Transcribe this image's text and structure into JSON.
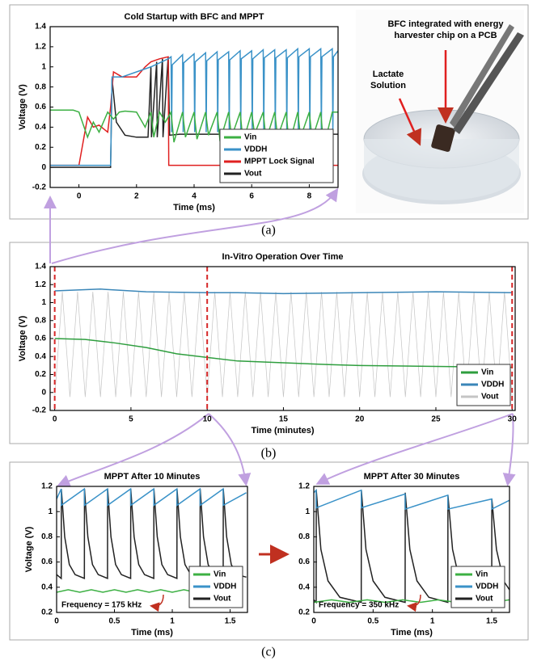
{
  "chart_data": [
    {
      "type": "line",
      "title": "Cold Startup with BFC and MPPT",
      "x_label": "Time (ms)",
      "y_label": "Voltage (V)",
      "xlim": [
        -1,
        9
      ],
      "xticks": [
        0,
        2,
        4,
        6,
        8
      ],
      "ylim": [
        -0.2,
        1.4
      ],
      "yticks": [
        -0.2,
        0,
        0.2,
        0.4,
        0.6,
        0.8,
        1,
        1.2,
        1.4
      ],
      "legend": "lower right",
      "series": [
        {
          "name": "Vin",
          "color": "#3cb043",
          "x": [
            -1,
            -0.2,
            0,
            0.3,
            0.5,
            0.7,
            1,
            1.2,
            1.4,
            1.6,
            2,
            2.3,
            2.5,
            2.6,
            2.8,
            3,
            3.2,
            3.3,
            3.6,
            3.7,
            4,
            4.1,
            4.4,
            4.5,
            4.8,
            4.9,
            5.2,
            5.3,
            5.6,
            5.7,
            6,
            6.1,
            6.4,
            6.5,
            6.8,
            6.9,
            7.2,
            7.3,
            7.6,
            7.7,
            8,
            8.1,
            8.4,
            8.5,
            8.8,
            9
          ],
          "values": [
            0.57,
            0.57,
            0.55,
            0.3,
            0.45,
            0.35,
            0.55,
            0.48,
            0.55,
            0.56,
            0.55,
            0.4,
            0.55,
            0.3,
            0.55,
            0.45,
            0.55,
            0.25,
            0.55,
            0.3,
            0.55,
            0.28,
            0.55,
            0.32,
            0.55,
            0.26,
            0.55,
            0.3,
            0.55,
            0.25,
            0.55,
            0.33,
            0.55,
            0.27,
            0.55,
            0.3,
            0.55,
            0.22,
            0.55,
            0.3,
            0.55,
            0.28,
            0.55,
            0.2,
            0.55,
            0.55
          ]
        },
        {
          "name": "VDDH",
          "color": "#3a92c8",
          "x": [
            -1,
            1.1,
            1.15,
            1.5,
            2.5,
            3.1,
            3.2,
            3.22,
            3.24,
            3.6,
            3.62,
            3.64,
            4,
            4.02,
            4.04,
            4.4,
            4.42,
            4.44,
            4.8,
            4.82,
            4.84,
            5.2,
            5.22,
            5.24,
            5.6,
            5.62,
            5.64,
            6,
            6.02,
            6.04,
            6.4,
            6.42,
            6.44,
            6.8,
            6.82,
            6.84,
            7.2,
            7.22,
            7.24,
            7.6,
            7.62,
            7.64,
            8,
            8.02,
            8.04,
            8.4,
            8.42,
            8.44,
            8.8,
            8.82,
            8.84,
            9
          ],
          "values": [
            0.02,
            0.02,
            0.9,
            0.9,
            1.0,
            1.08,
            1.1,
            0.35,
            1.02,
            1.12,
            0.35,
            1.04,
            1.13,
            0.35,
            1.05,
            1.14,
            0.35,
            1.06,
            1.15,
            0.35,
            1.07,
            1.15,
            0.35,
            1.07,
            1.16,
            0.35,
            1.08,
            1.16,
            0.35,
            1.08,
            1.17,
            0.35,
            1.09,
            1.17,
            0.35,
            1.09,
            1.17,
            0.35,
            1.09,
            1.18,
            0.35,
            1.1,
            1.18,
            0.35,
            1.1,
            1.18,
            0.35,
            1.1,
            1.18,
            0.35,
            1.1,
            1.16
          ]
        },
        {
          "name": "MPPT Lock Signal",
          "color": "#e02020",
          "x": [
            -1,
            0,
            0.3,
            0.5,
            0.7,
            1,
            1.1,
            1.2,
            1.5,
            2,
            2.3,
            2.5,
            2.8,
            3.1,
            3.12,
            9
          ],
          "values": [
            0.02,
            0.02,
            0.5,
            0.4,
            0.42,
            0.35,
            0.6,
            0.95,
            0.9,
            0.9,
            1.0,
            1.05,
            1.08,
            1.1,
            0.02,
            0.02
          ]
        },
        {
          "name": "Vout",
          "color": "#222222",
          "x": [
            -1,
            1.1,
            1.15,
            1.3,
            1.6,
            2,
            2.4,
            2.5,
            2.52,
            2.7,
            2.72,
            2.9,
            2.92,
            3.1,
            3.15,
            3.5,
            9
          ],
          "values": [
            0,
            0,
            0.88,
            0.45,
            0.32,
            0.3,
            0.3,
            1.0,
            0.3,
            1.05,
            0.3,
            1.08,
            0.3,
            1.1,
            0.32,
            0.33,
            0.33
          ]
        }
      ]
    },
    {
      "type": "line",
      "title": "In-Vitro Operation Over Time",
      "x_label": "Time (minutes)",
      "y_label": "Voltage (V)",
      "xlim": [
        -0.3,
        30.2
      ],
      "xticks": [
        0,
        5,
        10,
        15,
        20,
        25,
        30
      ],
      "ylim": [
        -0.2,
        1.4
      ],
      "yticks": [
        -0.2,
        0,
        0.2,
        0.4,
        0.6,
        0.8,
        1,
        1.2,
        1.4
      ],
      "legend": "lower right",
      "vlines": [
        0,
        10,
        30
      ],
      "vline_color": "#d62728",
      "series": [
        {
          "name": "Vin",
          "color": "#2e9e3e",
          "x": [
            0,
            2,
            4,
            6,
            8,
            10,
            12,
            15,
            18,
            20,
            25,
            30
          ],
          "values": [
            0.6,
            0.59,
            0.55,
            0.5,
            0.43,
            0.39,
            0.35,
            0.33,
            0.31,
            0.3,
            0.29,
            0.28
          ]
        },
        {
          "name": "VDDH",
          "color": "#3a86b8",
          "x": [
            0,
            3,
            6,
            10,
            12,
            15,
            20,
            25,
            30
          ],
          "values": [
            1.13,
            1.15,
            1.12,
            1.11,
            1.11,
            1.1,
            1.11,
            1.12,
            1.11
          ]
        },
        {
          "name": "Vout",
          "color": "#c4c4c4",
          "x": [
            0,
            0.5,
            1,
            1.5,
            2,
            2.5,
            3,
            3.5,
            4,
            4.5,
            5,
            5.5,
            6,
            6.5,
            7,
            7.5,
            8,
            8.5,
            9,
            9.5,
            10,
            10.5,
            11,
            11.5,
            12,
            12.5,
            13,
            13.5,
            14,
            14.5,
            15,
            15.5,
            16,
            16.5,
            17,
            17.5,
            18,
            18.5,
            19,
            19.5,
            20,
            20.5,
            21,
            21.5,
            22,
            22.5,
            23,
            23.5,
            24,
            24.5,
            25,
            25.5,
            26,
            26.5,
            27,
            27.5,
            28,
            28.5,
            29,
            29.5,
            30
          ],
          "values": [
            -0.05,
            1.12,
            -0.05,
            1.12,
            -0.05,
            1.12,
            -0.05,
            1.12,
            -0.05,
            1.12,
            -0.05,
            1.12,
            -0.05,
            1.12,
            -0.05,
            1.12,
            -0.05,
            1.12,
            -0.05,
            1.12,
            -0.05,
            1.12,
            -0.05,
            1.12,
            -0.05,
            1.12,
            -0.05,
            1.12,
            -0.05,
            1.12,
            -0.05,
            1.12,
            -0.05,
            1.12,
            -0.05,
            1.12,
            -0.05,
            1.12,
            -0.05,
            1.12,
            -0.05,
            1.12,
            -0.05,
            1.12,
            -0.05,
            1.12,
            -0.05,
            1.12,
            -0.05,
            1.12,
            -0.05,
            1.12,
            -0.05,
            1.12,
            -0.05,
            1.12,
            -0.05,
            1.12,
            -0.05,
            1.12,
            -0.05
          ]
        }
      ]
    },
    {
      "type": "line",
      "title": "MPPT After 10 Minutes",
      "x_label": "Time (ms)",
      "y_label": "Voltage (V)",
      "annotation": "Frequency = 175 kHz",
      "xlim": [
        0,
        1.65
      ],
      "xticks": [
        0,
        0.5,
        1,
        1.5
      ],
      "ylim": [
        0.2,
        1.2
      ],
      "yticks": [
        0.2,
        0.4,
        0.6,
        0.8,
        1,
        1.2
      ],
      "legend": "lower right",
      "series": [
        {
          "name": "Vin",
          "color": "#3cb043",
          "x": [
            0,
            0.1,
            0.2,
            0.3,
            0.4,
            0.5,
            0.6,
            0.7,
            0.8,
            0.9,
            1,
            1.1,
            1.2,
            1.3,
            1.4,
            1.5,
            1.6
          ],
          "values": [
            0.36,
            0.38,
            0.36,
            0.38,
            0.36,
            0.38,
            0.36,
            0.38,
            0.36,
            0.38,
            0.36,
            0.38,
            0.36,
            0.38,
            0.36,
            0.38,
            0.36
          ]
        },
        {
          "name": "VDDH",
          "color": "#3a92c8",
          "x": [
            0,
            0.04,
            0.041,
            0.24,
            0.241,
            0.44,
            0.441,
            0.64,
            0.641,
            0.84,
            0.841,
            1.04,
            1.041,
            1.24,
            1.241,
            1.44,
            1.441,
            1.64
          ],
          "values": [
            1.1,
            1.18,
            1.05,
            1.18,
            1.05,
            1.18,
            1.05,
            1.18,
            1.05,
            1.18,
            1.05,
            1.18,
            1.05,
            1.18,
            1.05,
            1.18,
            1.05,
            1.15
          ]
        },
        {
          "name": "Vout",
          "color": "#222222",
          "x": [
            0,
            0.04,
            0.041,
            0.07,
            0.11,
            0.16,
            0.24,
            0.241,
            0.27,
            0.31,
            0.36,
            0.44,
            0.441,
            0.47,
            0.51,
            0.56,
            0.64,
            0.641,
            0.67,
            0.71,
            0.76,
            0.84,
            0.841,
            0.87,
            0.91,
            0.96,
            1.04,
            1.041,
            1.07,
            1.11,
            1.16,
            1.24,
            1.241,
            1.27,
            1.31,
            1.36,
            1.44,
            1.441,
            1.47,
            1.51,
            1.56,
            1.64
          ],
          "values": [
            0.5,
            0.47,
            1.18,
            0.8,
            0.58,
            0.5,
            0.47,
            1.18,
            0.8,
            0.58,
            0.5,
            0.47,
            1.18,
            0.8,
            0.58,
            0.5,
            0.47,
            1.18,
            0.8,
            0.58,
            0.5,
            0.47,
            1.18,
            0.8,
            0.58,
            0.5,
            0.47,
            1.18,
            0.8,
            0.58,
            0.5,
            0.47,
            1.18,
            0.8,
            0.58,
            0.5,
            0.47,
            1.18,
            0.8,
            0.58,
            0.5,
            0.48
          ]
        }
      ]
    },
    {
      "type": "line",
      "title": "MPPT After 30 Minutes",
      "x_label": "Time (ms)",
      "annotation": "Frequency = 350 kHz",
      "xlim": [
        0,
        1.65
      ],
      "xticks": [
        0,
        0.5,
        1,
        1.5
      ],
      "ylim": [
        0.2,
        1.2
      ],
      "yticks": [
        0.2,
        0.4,
        0.6,
        0.8,
        1,
        1.2
      ],
      "legend": "lower right",
      "series": [
        {
          "name": "Vin",
          "color": "#3cb043",
          "x": [
            0,
            0.15,
            0.3,
            0.45,
            0.6,
            0.75,
            0.9,
            1.05,
            1.2,
            1.35,
            1.5,
            1.65
          ],
          "values": [
            0.28,
            0.3,
            0.28,
            0.3,
            0.28,
            0.3,
            0.28,
            0.3,
            0.28,
            0.3,
            0.28,
            0.3
          ]
        },
        {
          "name": "VDDH",
          "color": "#3a92c8",
          "x": [
            0,
            0.02,
            0.021,
            0.4,
            0.401,
            0.77,
            0.771,
            1.13,
            1.131,
            1.5,
            1.501,
            1.65
          ],
          "values": [
            1.15,
            1.17,
            1.03,
            1.17,
            1.03,
            1.14,
            1.02,
            1.13,
            1.02,
            1.1,
            1.02,
            1.09
          ]
        },
        {
          "name": "Vout",
          "color": "#222222",
          "x": [
            0,
            0.02,
            0.021,
            0.06,
            0.12,
            0.22,
            0.4,
            0.401,
            0.44,
            0.5,
            0.6,
            0.77,
            0.771,
            0.81,
            0.87,
            0.97,
            1.13,
            1.131,
            1.17,
            1.23,
            1.33,
            1.5,
            1.501,
            1.54,
            1.6,
            1.65
          ],
          "values": [
            0.3,
            0.28,
            1.17,
            0.7,
            0.45,
            0.32,
            0.28,
            1.17,
            0.7,
            0.45,
            0.32,
            0.28,
            1.15,
            0.7,
            0.45,
            0.32,
            0.28,
            1.13,
            0.7,
            0.45,
            0.32,
            0.28,
            1.1,
            0.7,
            0.45,
            0.38
          ]
        }
      ]
    }
  ],
  "photo": {
    "caption_lines": [
      "BFC integrated with energy",
      "harvester chip on a PCB"
    ],
    "label_lines": [
      "Lactate",
      "Solution"
    ]
  },
  "captions": [
    "(a)",
    "(b)",
    "(c)"
  ]
}
